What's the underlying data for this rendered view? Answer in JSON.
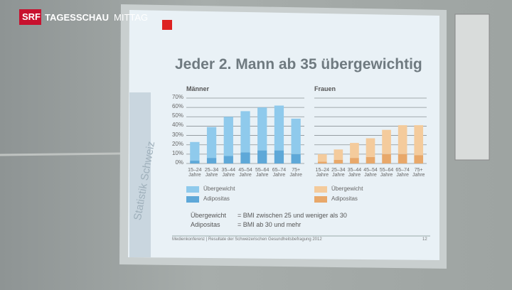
{
  "broadcast": {
    "logo": "SRF",
    "show": "TAGESSCHAU",
    "edition": "MITTAG"
  },
  "slide": {
    "title": "Jeder 2. Mann ab 35 übergewichtig",
    "side_label": "Statistik Schweiz",
    "definitions": [
      [
        "Übergewicht",
        "= BMI zwischen 25 und weniger als 30"
      ],
      [
        "Adipositas",
        "= BMI ab 30 und mehr"
      ]
    ],
    "footer": "Medienkonferenz | Resultate der Schweizerischen Gesundheitsbefragung 2012",
    "page": "12"
  },
  "chart_data": [
    {
      "type": "bar",
      "stacked": true,
      "title": "Männer",
      "categories": [
        "15–24\nJahre",
        "25–34\nJahre",
        "35–44\nJahre",
        "45–54\nJahre",
        "55–64\nJahre",
        "65–74\nJahre",
        "75+\nJahre"
      ],
      "series": [
        {
          "name": "Adipositas",
          "color": "#5ea8d8",
          "values": [
            3,
            6,
            8,
            12,
            14,
            14,
            10
          ]
        },
        {
          "name": "Übergewicht",
          "color": "#8fcaec",
          "values": [
            20,
            33,
            42,
            44,
            46,
            48,
            38
          ]
        }
      ],
      "ylim": [
        0,
        70
      ],
      "yticks": [
        {
          "value": 0,
          "label": "0%"
        },
        {
          "value": 10,
          "label": "10%"
        },
        {
          "value": 20,
          "label": "20%"
        },
        {
          "value": 30,
          "label": "30%"
        },
        {
          "value": 40,
          "label": "40%"
        },
        {
          "value": 50,
          "label": "50%"
        },
        {
          "value": 60,
          "label": "60%"
        },
        {
          "value": 70,
          "label": "70%"
        }
      ],
      "grid": true,
      "tick_labels": true
    },
    {
      "type": "bar",
      "stacked": true,
      "title": "Frauen",
      "categories": [
        "15–24\nJahre",
        "25–34\nJahre",
        "35–44\nJahre",
        "45–54\nJahre",
        "55–64\nJahre",
        "65–74\nJahre",
        "75+\nJahre"
      ],
      "series": [
        {
          "name": "Adipositas",
          "color": "#e8a86a",
          "values": [
            2,
            4,
            6,
            7,
            10,
            10,
            9
          ]
        },
        {
          "name": "Übergewicht",
          "color": "#f4cb9c",
          "values": [
            8,
            11,
            16,
            20,
            26,
            31,
            32
          ]
        }
      ],
      "ylim": [
        0,
        70
      ],
      "yticks": [
        0,
        10,
        20,
        30,
        40,
        50,
        60,
        70
      ],
      "grid": true,
      "tick_labels": false
    }
  ]
}
